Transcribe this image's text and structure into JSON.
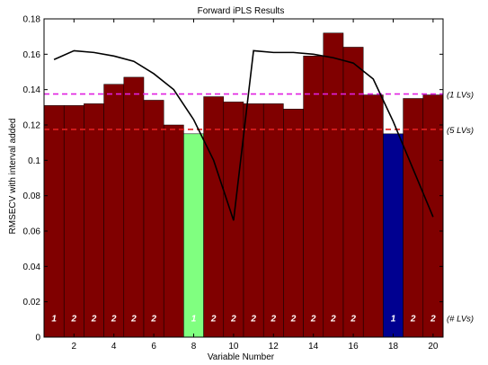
{
  "chart_data": {
    "type": "bar",
    "title": "Forward iPLS Results",
    "xlabel": "Variable Number",
    "ylabel": "RMSECV with interval added",
    "x": [
      1,
      2,
      3,
      4,
      5,
      6,
      7,
      8,
      9,
      10,
      11,
      12,
      13,
      14,
      15,
      16,
      17,
      18,
      19,
      20
    ],
    "xticks": [
      2,
      4,
      6,
      8,
      10,
      12,
      14,
      16,
      18,
      20
    ],
    "xlim": [
      0.5,
      20.5
    ],
    "ylim": [
      0,
      0.18
    ],
    "yticks": [
      0,
      0.02,
      0.04,
      0.06,
      0.08,
      0.1,
      0.12,
      0.14,
      0.16,
      0.18
    ],
    "ytick_labels": [
      "0",
      "0.02",
      "0.04",
      "0.06",
      "0.08",
      "0.1",
      "0.12",
      "0.14",
      "0.16",
      "0.18"
    ],
    "bar_values": [
      0.131,
      0.131,
      0.132,
      0.143,
      0.147,
      0.134,
      0.12,
      0.115,
      0.136,
      0.133,
      0.132,
      0.132,
      0.129,
      0.159,
      0.172,
      0.164,
      0.137,
      0.115,
      0.135,
      0.137
    ],
    "bar_colors": [
      "#800000",
      "#800000",
      "#800000",
      "#800000",
      "#800000",
      "#800000",
      "#800000",
      "#80ff80",
      "#800000",
      "#800000",
      "#800000",
      "#800000",
      "#800000",
      "#800000",
      "#800000",
      "#800000",
      "#800000",
      "#000090",
      "#800000",
      "#800000"
    ],
    "lv_numbers": [
      "1",
      "2",
      "2",
      "2",
      "2",
      "2",
      "1",
      "2",
      "2",
      "2",
      "2",
      "2",
      "2",
      "2",
      "2",
      "1",
      "2",
      "2"
    ],
    "lv_positions": [
      1,
      2,
      3,
      4,
      5,
      6,
      8,
      9,
      10,
      11,
      12,
      13,
      14,
      15,
      16,
      18,
      19,
      20
    ],
    "line_values": [
      0.157,
      0.162,
      0.161,
      0.159,
      0.156,
      0.149,
      0.14,
      0.123,
      0.1,
      0.066,
      0.162,
      0.161,
      0.161,
      0.16,
      0.158,
      0.155,
      0.146,
      0.122,
      0.095,
      0.068
    ],
    "ref_lines": [
      {
        "label": "(1 LVs)",
        "value": 0.1375,
        "color": "#e020e0"
      },
      {
        "label": "(5 LVs)",
        "value": 0.1175,
        "color": "#e02020"
      }
    ],
    "lv_axis_label": "(# LVs)"
  }
}
